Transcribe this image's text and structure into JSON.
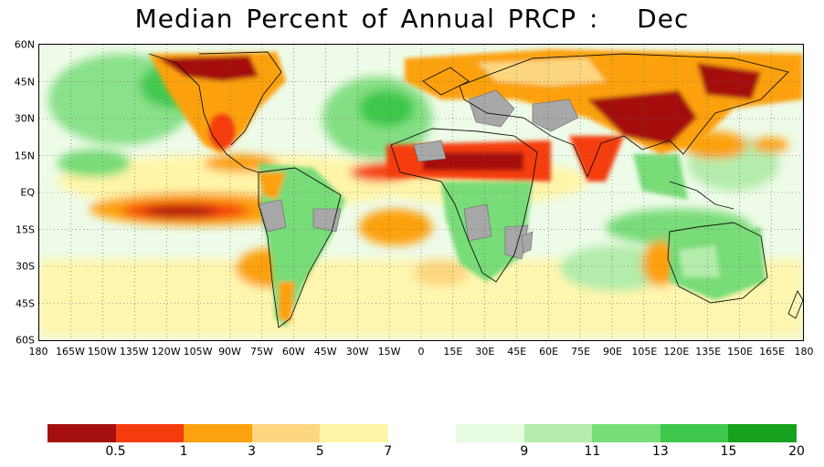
{
  "title": "Median Percent of Annual PRCP :   Dec",
  "map": {
    "lat_labels": [
      "60N",
      "45N",
      "30N",
      "15N",
      "EQ",
      "15S",
      "30S",
      "45S",
      "60S"
    ],
    "lon_labels": [
      "180",
      "165W",
      "150W",
      "135W",
      "120W",
      "105W",
      "90W",
      "75W",
      "60W",
      "45W",
      "30W",
      "15W",
      "0",
      "15E",
      "30E",
      "45E",
      "60E",
      "75E",
      "90E",
      "105E",
      "120E",
      "135E",
      "150E",
      "165E",
      "180"
    ],
    "lat_range": [
      -60,
      60
    ],
    "lon_range": [
      -180,
      180
    ],
    "gridlines": "dotted",
    "masked_color": "#a8a8a8"
  },
  "colorbar": {
    "colors": [
      "#a50f0f",
      "#f53c0f",
      "#fca10f",
      "#fdd77f",
      "#fff5a8",
      "#ffffff",
      "#e6fbe0",
      "#b4ecab",
      "#78dc78",
      "#3ec84b",
      "#16a11e"
    ],
    "labels": [
      "0.5",
      "1",
      "3",
      "5",
      "7",
      "9",
      "11",
      "13",
      "15",
      "20"
    ]
  }
}
